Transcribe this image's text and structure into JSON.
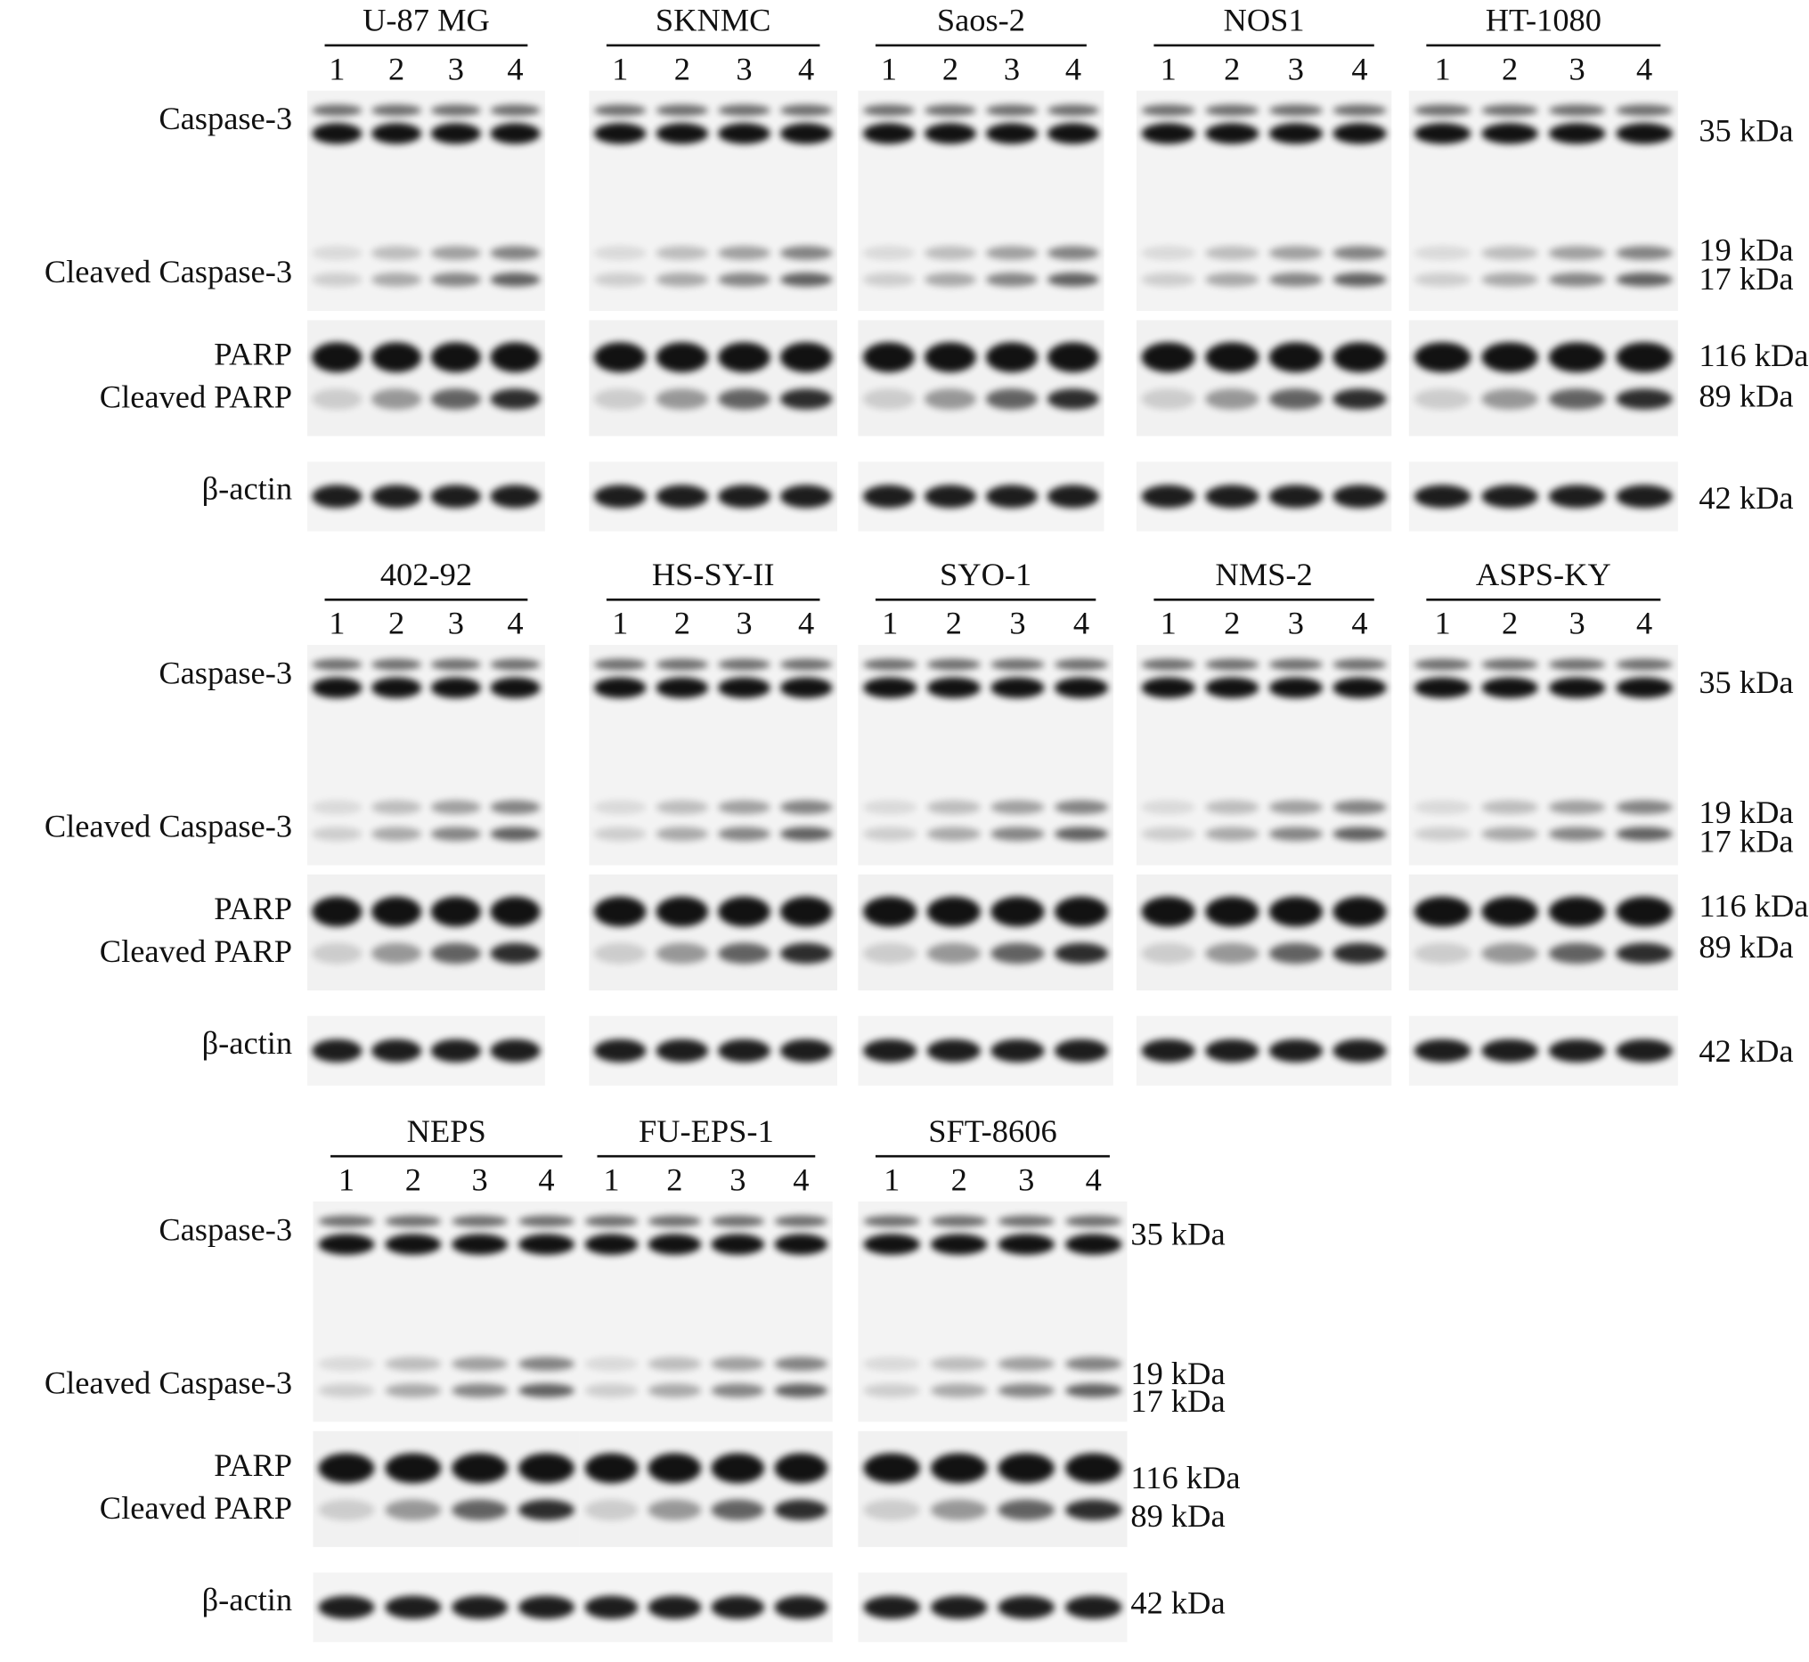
{
  "row_labels": [
    "Caspase-3",
    "Cleaved Caspase-3",
    "PARP",
    "Cleaved PARP",
    "β-actin"
  ],
  "markers": [
    "35 kDa",
    "19 kDa",
    "17 kDa",
    "116 kDa",
    "89 kDa",
    "42 kDa"
  ],
  "lanes": [
    "1",
    "2",
    "3",
    "4"
  ],
  "panels": [
    {
      "cell_lines": [
        "U-87 MG",
        "SKNMC",
        "Saos-2",
        "NOS1",
        "HT-1080"
      ]
    },
    {
      "cell_lines": [
        "402-92",
        "HS-SY-II",
        "SYO-1",
        "NMS-2",
        "ASPS-KY"
      ]
    },
    {
      "cell_lines": [
        "NEPS",
        "FU-EPS-1",
        "SFT-8606"
      ]
    }
  ]
}
